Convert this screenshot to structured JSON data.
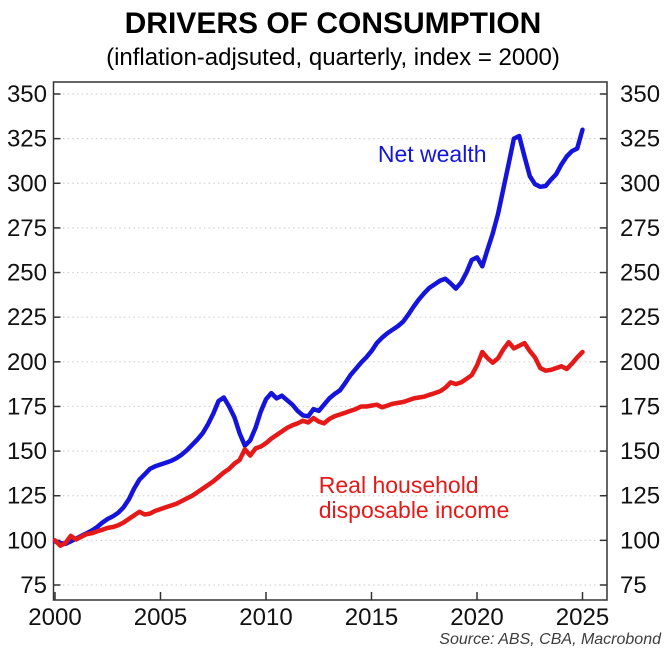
{
  "header": {
    "title": "DRIVERS OF CONSUMPTION",
    "subtitle": "(inflation-adjsuted, quarterly, index = 2000)"
  },
  "footer": {
    "source": "Source: ABS, CBA, Macrobond"
  },
  "chart_data": {
    "type": "line",
    "title": "DRIVERS OF CONSUMPTION",
    "subtitle": "(inflation-adjsuted, quarterly, index = 2000)",
    "x_start": 2000,
    "x_step": 0.25,
    "x_axis": {
      "ticks": [
        2000,
        2005,
        2010,
        2015,
        2020,
        2025
      ]
    },
    "y_axis": {
      "ticks": [
        75,
        100,
        125,
        150,
        175,
        200,
        225,
        250,
        275,
        300,
        325,
        350
      ],
      "sides": "both"
    },
    "ylim": [
      67,
      356
    ],
    "xlim": [
      1999.9,
      2026.3
    ],
    "grid": "dotted-horizontal",
    "colors": {
      "net_wealth": "#1414dc",
      "income": "#e61919",
      "grid": "#d2d2d2",
      "frame": "#333333",
      "text": "#111111",
      "source": "#3d3d3d"
    },
    "series": [
      {
        "name": "Net wealth",
        "color": "#1414dc",
        "values": [
          99.5,
          98.5,
          98,
          99.5,
          101,
          102.5,
          104,
          105.5,
          107.5,
          110,
          112,
          113.5,
          115.5,
          118.5,
          123,
          129,
          134,
          137,
          140,
          141.5,
          142.5,
          143.5,
          144.5,
          146,
          148,
          150.5,
          153.5,
          156.5,
          160,
          165,
          171,
          178,
          180,
          175,
          169,
          160,
          153,
          156,
          163,
          172,
          179,
          182.5,
          179.5,
          181,
          178.5,
          176,
          172.5,
          170,
          169.5,
          173.5,
          172.5,
          176,
          179.5,
          182,
          184,
          188,
          192.5,
          196,
          199.5,
          202.5,
          206,
          210.5,
          213.5,
          216,
          218,
          220,
          222.5,
          226.5,
          231,
          235,
          238.5,
          241.5,
          243.5,
          245.5,
          246.5,
          244,
          241,
          244.5,
          250,
          257,
          258.5,
          253.5,
          263,
          272,
          283,
          297,
          311,
          325,
          326.5,
          315,
          304,
          299.5,
          298,
          298.5,
          302,
          305,
          310.5,
          315,
          318,
          319.5,
          330
        ]
      },
      {
        "name": "Real household disposable income",
        "color": "#e61919",
        "values": [
          100,
          97,
          98.5,
          102.5,
          100.5,
          102,
          103.5,
          104,
          105,
          106,
          107,
          107.5,
          108.5,
          110,
          112,
          114,
          116,
          114.5,
          115,
          116.5,
          117.5,
          118.5,
          119.5,
          120.5,
          122,
          123.5,
          125,
          127,
          129,
          131,
          133,
          135.5,
          138,
          140,
          143,
          145,
          151,
          147.5,
          151.5,
          152.5,
          154.5,
          157,
          159,
          161,
          163,
          164.5,
          165.5,
          167,
          166,
          168.5,
          166.5,
          165.5,
          168,
          169.5,
          170.5,
          171.5,
          172.5,
          173.5,
          175,
          175,
          175.5,
          176,
          174.5,
          175.5,
          176.5,
          177,
          177.5,
          178.5,
          179.5,
          180,
          180.5,
          181.5,
          182.5,
          183.5,
          185.5,
          188.5,
          187.5,
          188.5,
          190.5,
          192.5,
          198,
          205.5,
          202,
          199.5,
          202,
          207,
          211,
          207.5,
          209,
          210.5,
          206,
          202.5,
          196.5,
          195,
          195.5,
          196.5,
          197.5,
          196,
          199,
          202.5,
          205.5
        ]
      }
    ],
    "annotations": [
      {
        "text": "Net wealth",
        "color": "#1414dc",
        "x": 2015.3,
        "y": 316.5
      },
      {
        "text": "Real household",
        "color": "#e61919",
        "x": 2012.5,
        "y": 131
      },
      {
        "text": "disposable income",
        "color": "#e61919",
        "x": 2012.5,
        "y": 117
      }
    ]
  }
}
